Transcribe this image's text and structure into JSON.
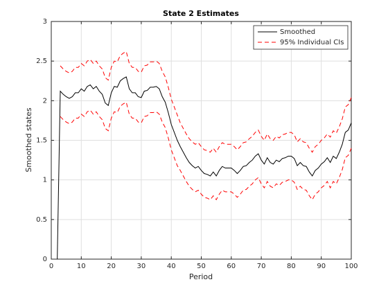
{
  "chart_data": {
    "type": "line",
    "title": "State 2 Estimates",
    "xlabel": "Period",
    "ylabel": "Smoothed states",
    "x": [
      2,
      3,
      4,
      5,
      6,
      7,
      8,
      9,
      10,
      11,
      12,
      13,
      14,
      15,
      16,
      17,
      18,
      19,
      20,
      21,
      22,
      23,
      24,
      25,
      26,
      27,
      28,
      29,
      30,
      31,
      32,
      33,
      34,
      35,
      36,
      37,
      38,
      39,
      40,
      41,
      42,
      43,
      44,
      45,
      46,
      47,
      48,
      49,
      50,
      51,
      52,
      53,
      54,
      55,
      56,
      57,
      58,
      59,
      60,
      61,
      62,
      63,
      64,
      65,
      66,
      67,
      68,
      69,
      70,
      71,
      72,
      73,
      74,
      75,
      76,
      77,
      78,
      79,
      80,
      81,
      82,
      83,
      84,
      85,
      86,
      87,
      88,
      89,
      90,
      91,
      92,
      93,
      94,
      95,
      96,
      97,
      98,
      99,
      100
    ],
    "series": [
      {
        "name": "Smoothed",
        "color": "#000000",
        "dashed": false,
        "values": [
          0,
          2.12,
          2.08,
          2.05,
          2.03,
          2.05,
          2.1,
          2.1,
          2.15,
          2.12,
          2.18,
          2.2,
          2.15,
          2.18,
          2.12,
          2.08,
          1.97,
          1.94,
          2.1,
          2.18,
          2.17,
          2.25,
          2.28,
          2.3,
          2.15,
          2.1,
          2.1,
          2.05,
          2.04,
          2.12,
          2.13,
          2.17,
          2.17,
          2.18,
          2.15,
          2.05,
          1.98,
          1.85,
          1.7,
          1.6,
          1.5,
          1.42,
          1.35,
          1.28,
          1.22,
          1.18,
          1.15,
          1.17,
          1.12,
          1.08,
          1.07,
          1.05,
          1.1,
          1.05,
          1.12,
          1.17,
          1.15,
          1.15,
          1.15,
          1.12,
          1.08,
          1.12,
          1.17,
          1.18,
          1.22,
          1.25,
          1.3,
          1.33,
          1.25,
          1.2,
          1.28,
          1.22,
          1.2,
          1.25,
          1.23,
          1.27,
          1.28,
          1.3,
          1.3,
          1.27,
          1.18,
          1.22,
          1.18,
          1.17,
          1.1,
          1.05,
          1.12,
          1.15,
          1.2,
          1.23,
          1.28,
          1.22,
          1.3,
          1.27,
          1.35,
          1.45,
          1.6,
          1.63,
          1.72
        ]
      },
      {
        "name": "95% Individual CIs",
        "color": "#ff0000",
        "dashed": true,
        "upper": [
          null,
          2.44,
          2.4,
          2.37,
          2.35,
          2.37,
          2.42,
          2.42,
          2.47,
          2.44,
          2.5,
          2.52,
          2.47,
          2.5,
          2.44,
          2.4,
          2.29,
          2.26,
          2.42,
          2.5,
          2.49,
          2.57,
          2.6,
          2.62,
          2.47,
          2.42,
          2.42,
          2.37,
          2.36,
          2.44,
          2.45,
          2.49,
          2.49,
          2.5,
          2.47,
          2.37,
          2.3,
          2.17,
          2.02,
          1.92,
          1.82,
          1.72,
          1.65,
          1.58,
          1.52,
          1.48,
          1.45,
          1.47,
          1.42,
          1.38,
          1.37,
          1.35,
          1.4,
          1.35,
          1.42,
          1.47,
          1.45,
          1.45,
          1.45,
          1.42,
          1.38,
          1.42,
          1.47,
          1.48,
          1.52,
          1.55,
          1.6,
          1.63,
          1.55,
          1.5,
          1.58,
          1.52,
          1.5,
          1.55,
          1.53,
          1.57,
          1.58,
          1.6,
          1.6,
          1.57,
          1.48,
          1.52,
          1.48,
          1.47,
          1.4,
          1.35,
          1.42,
          1.45,
          1.5,
          1.53,
          1.58,
          1.54,
          1.62,
          1.59,
          1.67,
          1.77,
          1.92,
          1.95,
          2.04
        ],
        "lower": [
          null,
          1.8,
          1.76,
          1.73,
          1.71,
          1.73,
          1.78,
          1.78,
          1.83,
          1.8,
          1.86,
          1.88,
          1.83,
          1.86,
          1.8,
          1.76,
          1.65,
          1.62,
          1.78,
          1.86,
          1.85,
          1.93,
          1.96,
          1.98,
          1.83,
          1.78,
          1.78,
          1.73,
          1.72,
          1.8,
          1.81,
          1.85,
          1.85,
          1.86,
          1.83,
          1.73,
          1.66,
          1.53,
          1.38,
          1.28,
          1.18,
          1.12,
          1.05,
          0.98,
          0.92,
          0.88,
          0.85,
          0.87,
          0.82,
          0.78,
          0.77,
          0.75,
          0.8,
          0.75,
          0.82,
          0.87,
          0.85,
          0.85,
          0.85,
          0.82,
          0.78,
          0.82,
          0.87,
          0.88,
          0.92,
          0.95,
          1.0,
          1.03,
          0.95,
          0.9,
          0.98,
          0.92,
          0.9,
          0.95,
          0.93,
          0.97,
          0.98,
          1.0,
          1.0,
          0.97,
          0.88,
          0.92,
          0.88,
          0.87,
          0.8,
          0.75,
          0.82,
          0.85,
          0.9,
          0.93,
          0.98,
          0.9,
          0.98,
          0.95,
          1.03,
          1.13,
          1.28,
          1.31,
          1.4
        ]
      }
    ],
    "xlim": [
      0,
      100
    ],
    "xticks": [
      0,
      10,
      20,
      30,
      40,
      50,
      60,
      70,
      80,
      90,
      100
    ],
    "ylim": [
      0,
      3
    ],
    "yticks": [
      0,
      0.5,
      1,
      1.5,
      2,
      2.5,
      3
    ],
    "grid": true,
    "legend": "northeast"
  }
}
